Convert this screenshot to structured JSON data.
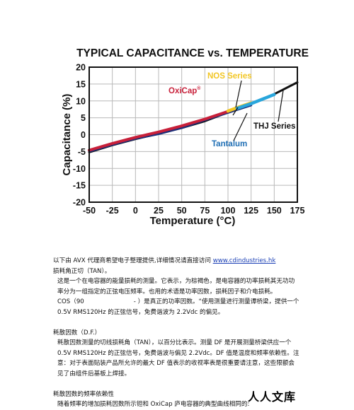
{
  "chart_data": {
    "type": "line",
    "title": "TYPICAL CAPACITANCE vs. TEMPERATURE",
    "xlabel": "Temperature (°C)",
    "ylabel": "Capacitance (%)",
    "xlim": [
      -50,
      175
    ],
    "ylim": [
      -20,
      20
    ],
    "xticks": [
      "-50",
      "-25",
      "0",
      "25",
      "50",
      "75",
      "100",
      "125",
      "150",
      "175"
    ],
    "yticks": [
      "20",
      "15",
      "10",
      "5",
      "0",
      "-5",
      "-10",
      "-15",
      "-20"
    ],
    "grid": true,
    "series": [
      {
        "name": "THJ Series",
        "color": "#111111",
        "x": [
          -50,
          -25,
          0,
          25,
          50,
          75,
          100,
          125,
          150,
          175
        ],
        "y": [
          -5.2,
          -3.1,
          -1.3,
          0.3,
          2.0,
          4.0,
          6.6,
          9.2,
          12.0,
          15.5
        ]
      },
      {
        "name": "Tantalum",
        "color": "#1b2f7a",
        "x": [
          -50,
          -25,
          0,
          25,
          50,
          75,
          100,
          125
        ],
        "y": [
          -5.0,
          -3.0,
          -1.2,
          0.2,
          2.0,
          4.3,
          6.5,
          8.7
        ]
      },
      {
        "name": "OxiCap®",
        "color": "#c8203a",
        "x": [
          -50,
          -25,
          0,
          25,
          50,
          75,
          100
        ],
        "y": [
          -4.6,
          -2.6,
          -0.8,
          0.8,
          2.6,
          4.6,
          6.9
        ]
      },
      {
        "name": "NOS Series",
        "color": "#f2c624",
        "x": [
          100,
          110,
          125
        ],
        "y": [
          7.0,
          8.0,
          9.4
        ]
      },
      {
        "name": "",
        "color": "#29a6dc",
        "x": [
          110,
          125,
          150
        ],
        "y": [
          7.8,
          9.2,
          11.9
        ]
      }
    ],
    "annotations": [
      {
        "text": "NOS Series",
        "color": "#f2c624"
      },
      {
        "text": "OxiCap",
        "sup": "®",
        "color": "#c8203a"
      },
      {
        "text": "THJ Series",
        "color": "#111111"
      },
      {
        "text": "Tantalum",
        "color": "#1f6fb5"
      }
    ]
  },
  "text": {
    "intro_prefix": "以下由 AVX 代理商希望电子整理提供,详细情况请直接访问 ",
    "intro_link": "www.cdindustries.hk",
    "line_tan": "损耗角正切（TAN）。",
    "p1_l1": "这是一个在电容器的能量损耗的测量。它表示，为棕褐色，是电容器的功率损耗其无功功",
    "p1_l2": "率分为一组指定的正弦电压频率。也用的术语是功率因数，损耗因子和介电损耗。",
    "p1_l3a": "COS（90",
    "p1_l3b": "- ）是真正的功率因数。“使用测量进行测量谭桥梁，提供一个",
    "p1_l4": "0.5V RMS120Hz 的正弦信号，免费谐波为 2.2Vdc 的偏见。",
    "df_title": "耗散因数（D.F.）",
    "p2_l1": "耗散因数测量的切线损耗角（TAN），以百分比表示。测量 DF 是开展测量桥梁供应一个",
    "p2_l2": "0.5V RMS120Hz 的正弦信号，免费谐波与偏见 2.2Vdc。DF 值是温度和频率依赖性。注",
    "p2_l3": "意：对于表面贴装产品所允许的最大 DF 值表示的收视率表是很重要请注意，这些限额会",
    "p2_l4": "见了由组件后基板上焊接。",
    "freq_title": "耗散因数的频率依赖性",
    "p3_l1": "随着频率的增加损耗因数所示钽和 OxiCap 庐电容器的典型曲线相同的:",
    "watermark": "人人文库"
  }
}
